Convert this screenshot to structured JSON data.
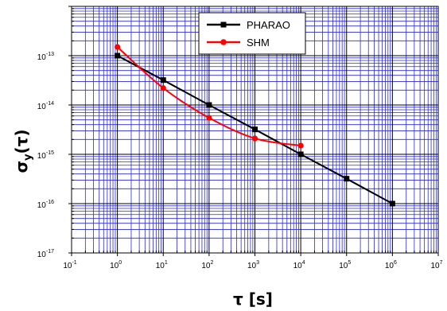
{
  "chart_data": {
    "type": "line",
    "x_scale": "log",
    "y_scale": "log",
    "xlim": [
      0.1,
      10000000
    ],
    "ylim": [
      1e-17,
      1e-12
    ],
    "grid": true,
    "legend_position": "top-center",
    "xlabel": "τ [s]",
    "ylabel_symbol": "σ",
    "ylabel_subscript": "y",
    "ylabel_arg": "(τ)",
    "x_ticks": [
      {
        "base": "10",
        "exp": "-1"
      },
      {
        "base": "10",
        "exp": "0"
      },
      {
        "base": "10",
        "exp": "1"
      },
      {
        "base": "10",
        "exp": "2"
      },
      {
        "base": "10",
        "exp": "3"
      },
      {
        "base": "10",
        "exp": "4"
      },
      {
        "base": "10",
        "exp": "5"
      },
      {
        "base": "10",
        "exp": "6"
      },
      {
        "base": "10",
        "exp": "7"
      }
    ],
    "y_ticks": [
      {
        "base": "10",
        "exp": "-17"
      },
      {
        "base": "10",
        "exp": "-16"
      },
      {
        "base": "10",
        "exp": "-15"
      },
      {
        "base": "10",
        "exp": "-14"
      },
      {
        "base": "10",
        "exp": "-13"
      }
    ],
    "series": [
      {
        "name": "PHARAO",
        "color": "#000000",
        "marker": "square",
        "x": [
          1,
          10,
          100,
          1000,
          10000,
          100000,
          1000000
        ],
        "y": [
          1e-13,
          3.2e-14,
          1e-14,
          3.2e-15,
          1e-15,
          3.2e-16,
          1e-16
        ]
      },
      {
        "name": "SHM",
        "color": "#ff0000",
        "marker": "circle",
        "x": [
          1,
          10,
          100,
          1000,
          10000
        ],
        "y": [
          1.5e-13,
          2.2e-14,
          5.5e-15,
          2.1e-15,
          1.5e-15
        ]
      }
    ]
  }
}
